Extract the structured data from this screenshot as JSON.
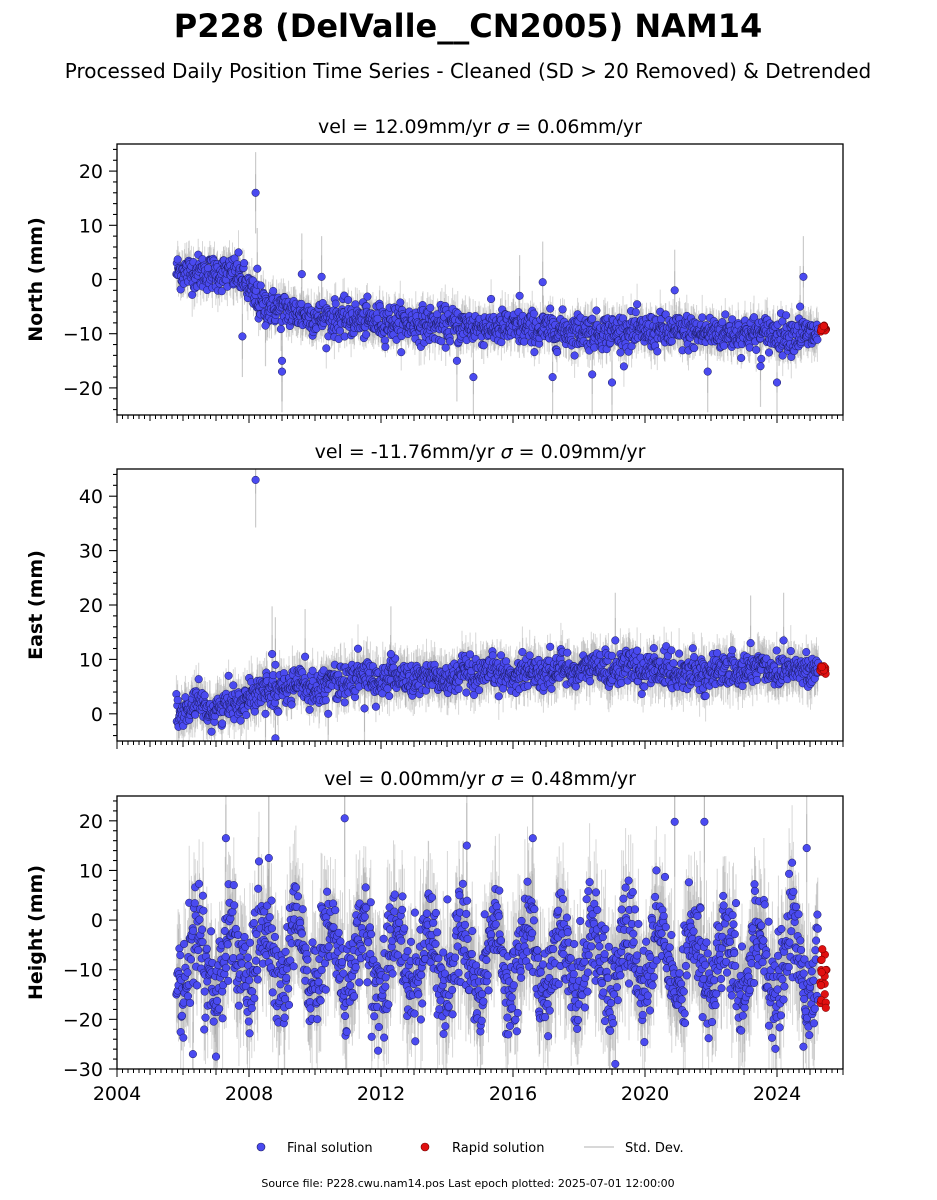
{
  "figure": {
    "title": "P228 (DelValle__CN2005) NAM14",
    "subtitle": "Processed Daily Position Time Series - Cleaned (SD > 20 Removed) & Detrended",
    "footer": "Source file: P228.cwu.nam14.pos  Last epoch plotted: 2025-07-01 12:00:00"
  },
  "legend": {
    "final_label": "Final solution",
    "rapid_label": "Rapid solution",
    "std_label": "Std. Dev."
  },
  "colors": {
    "final": "#4a4af0",
    "final_edge": "#1a1a5a",
    "rapid": "#e01010",
    "rapid_edge": "#6a0000",
    "std": "#9a9a9a"
  },
  "chart_data": [
    {
      "type": "scatter",
      "panel": "north",
      "title_prefix": "vel = 12.09mm/yr",
      "title_suffix": " = 0.06mm/yr",
      "sigma_symbol": "σ",
      "ylabel": "North (mm)",
      "ylim": [
        -25,
        25
      ],
      "yticks": [
        -20,
        -10,
        0,
        10,
        20
      ],
      "xlim": [
        2004,
        2026
      ],
      "xticks": [
        2004,
        2008,
        2012,
        2016,
        2020,
        2024
      ],
      "show_xtick_labels": false,
      "trend_knots": [
        [
          2005.8,
          1.5
        ],
        [
          2007.7,
          1.0
        ],
        [
          2008.3,
          -4.5
        ],
        [
          2010,
          -7
        ],
        [
          2014,
          -8.5
        ],
        [
          2018,
          -9.5
        ],
        [
          2022,
          -9.8
        ],
        [
          2025.3,
          -10.2
        ]
      ],
      "scatter_sd": 1.6,
      "seasonal_amp": 0,
      "err_len": 3,
      "first_epoch": 2005.8,
      "last_final_epoch": 2025.25,
      "outliers": [
        {
          "x": 2008.2,
          "y": 16.0
        },
        {
          "x": 2008.25,
          "y": 2.0
        },
        {
          "x": 2007.8,
          "y": -10.5
        },
        {
          "x": 2008.5,
          "y": -8.5
        },
        {
          "x": 2009.0,
          "y": -17.0
        },
        {
          "x": 2009.0,
          "y": -15.0
        },
        {
          "x": 2009.6,
          "y": 1.0
        },
        {
          "x": 2010.2,
          "y": 0.5
        },
        {
          "x": 2014.3,
          "y": -15.0
        },
        {
          "x": 2014.8,
          "y": -18.0
        },
        {
          "x": 2016.2,
          "y": -3.0
        },
        {
          "x": 2016.9,
          "y": -0.5
        },
        {
          "x": 2017.2,
          "y": -18.0
        },
        {
          "x": 2018.4,
          "y": -17.5
        },
        {
          "x": 2019.0,
          "y": -19.0
        },
        {
          "x": 2020.9,
          "y": -2.0
        },
        {
          "x": 2021.9,
          "y": -17.0
        },
        {
          "x": 2023.5,
          "y": -16.0
        },
        {
          "x": 2024.0,
          "y": -19.0
        },
        {
          "x": 2024.8,
          "y": 0.5
        },
        {
          "x": 2024.7,
          "y": -5.0
        }
      ],
      "rapid_x": [
        2025.3,
        2025.5
      ],
      "rapid_y": [
        -8.5,
        -9.8
      ],
      "rapid_count": 14
    },
    {
      "type": "scatter",
      "panel": "east",
      "title_prefix": "vel = -11.76mm/yr",
      "title_suffix": " = 0.09mm/yr",
      "sigma_symbol": "σ",
      "ylabel": "East (mm)",
      "ylim": [
        -5,
        45
      ],
      "yticks": [
        0,
        10,
        20,
        30,
        40
      ],
      "xlim": [
        2004,
        2026
      ],
      "xticks": [
        2004,
        2008,
        2012,
        2016,
        2020,
        2024
      ],
      "show_xtick_labels": false,
      "trend_knots": [
        [
          2005.8,
          0.5
        ],
        [
          2007.5,
          1.5
        ],
        [
          2008.3,
          4.5
        ],
        [
          2010.5,
          5.5
        ],
        [
          2011,
          6.5
        ],
        [
          2014,
          6.5
        ],
        [
          2016,
          7.5
        ],
        [
          2019,
          8.5
        ],
        [
          2022,
          7.5
        ],
        [
          2023.5,
          8.5
        ],
        [
          2025.3,
          8.0
        ]
      ],
      "scatter_sd": 1.5,
      "seasonal_amp": 0.6,
      "err_len": 3.5,
      "first_epoch": 2005.8,
      "last_final_epoch": 2025.25,
      "outliers": [
        {
          "x": 2008.2,
          "y": 43.0
        },
        {
          "x": 2008.7,
          "y": 11.0
        },
        {
          "x": 2008.8,
          "y": 9.0
        },
        {
          "x": 2008.8,
          "y": -4.5
        },
        {
          "x": 2008.5,
          "y": 0.0
        },
        {
          "x": 2009.7,
          "y": 10.5
        },
        {
          "x": 2010.4,
          "y": 0.0
        },
        {
          "x": 2011.5,
          "y": 1.0
        },
        {
          "x": 2012.3,
          "y": 11.0
        },
        {
          "x": 2019.1,
          "y": 13.5
        },
        {
          "x": 2023.2,
          "y": 13.0
        },
        {
          "x": 2024.2,
          "y": 13.5
        }
      ],
      "rapid_x": [
        2025.3,
        2025.5
      ],
      "rapid_y": [
        7.3,
        8.8
      ],
      "rapid_count": 12
    },
    {
      "type": "scatter",
      "panel": "height",
      "title_prefix": "vel = 0.00mm/yr",
      "title_suffix": " = 0.48mm/yr",
      "sigma_symbol": "σ",
      "ylabel": "Height (mm)",
      "ylim": [
        -30,
        25
      ],
      "yticks": [
        -30,
        -20,
        -10,
        0,
        10,
        20
      ],
      "xlim": [
        2004,
        2026
      ],
      "xticks": [
        2004,
        2008,
        2012,
        2016,
        2020,
        2024
      ],
      "show_xtick_labels": true,
      "trend_knots": [
        [
          2005.8,
          -8
        ],
        [
          2025.3,
          -8
        ]
      ],
      "scatter_sd": 4.8,
      "seasonal_amp": 6.5,
      "err_len": 9,
      "first_epoch": 2005.8,
      "last_final_epoch": 2025.25,
      "outliers": [
        {
          "x": 2010.9,
          "y": 20.5
        },
        {
          "x": 2020.9,
          "y": 19.8
        },
        {
          "x": 2021.8,
          "y": 19.8
        },
        {
          "x": 2024.9,
          "y": 14.5
        },
        {
          "x": 2007.3,
          "y": 16.5
        },
        {
          "x": 2008.6,
          "y": 12.5
        },
        {
          "x": 2014.6,
          "y": 15.0
        },
        {
          "x": 2016.6,
          "y": 16.5
        },
        {
          "x": 2007.0,
          "y": -27.5
        },
        {
          "x": 2006.3,
          "y": -27.0
        },
        {
          "x": 2019.1,
          "y": -29.0
        },
        {
          "x": 2024.8,
          "y": -25.5
        }
      ],
      "rapid_x": [
        2025.3,
        2025.5
      ],
      "rapid_y": [
        -18,
        -5.5
      ],
      "rapid_count": 18
    }
  ]
}
